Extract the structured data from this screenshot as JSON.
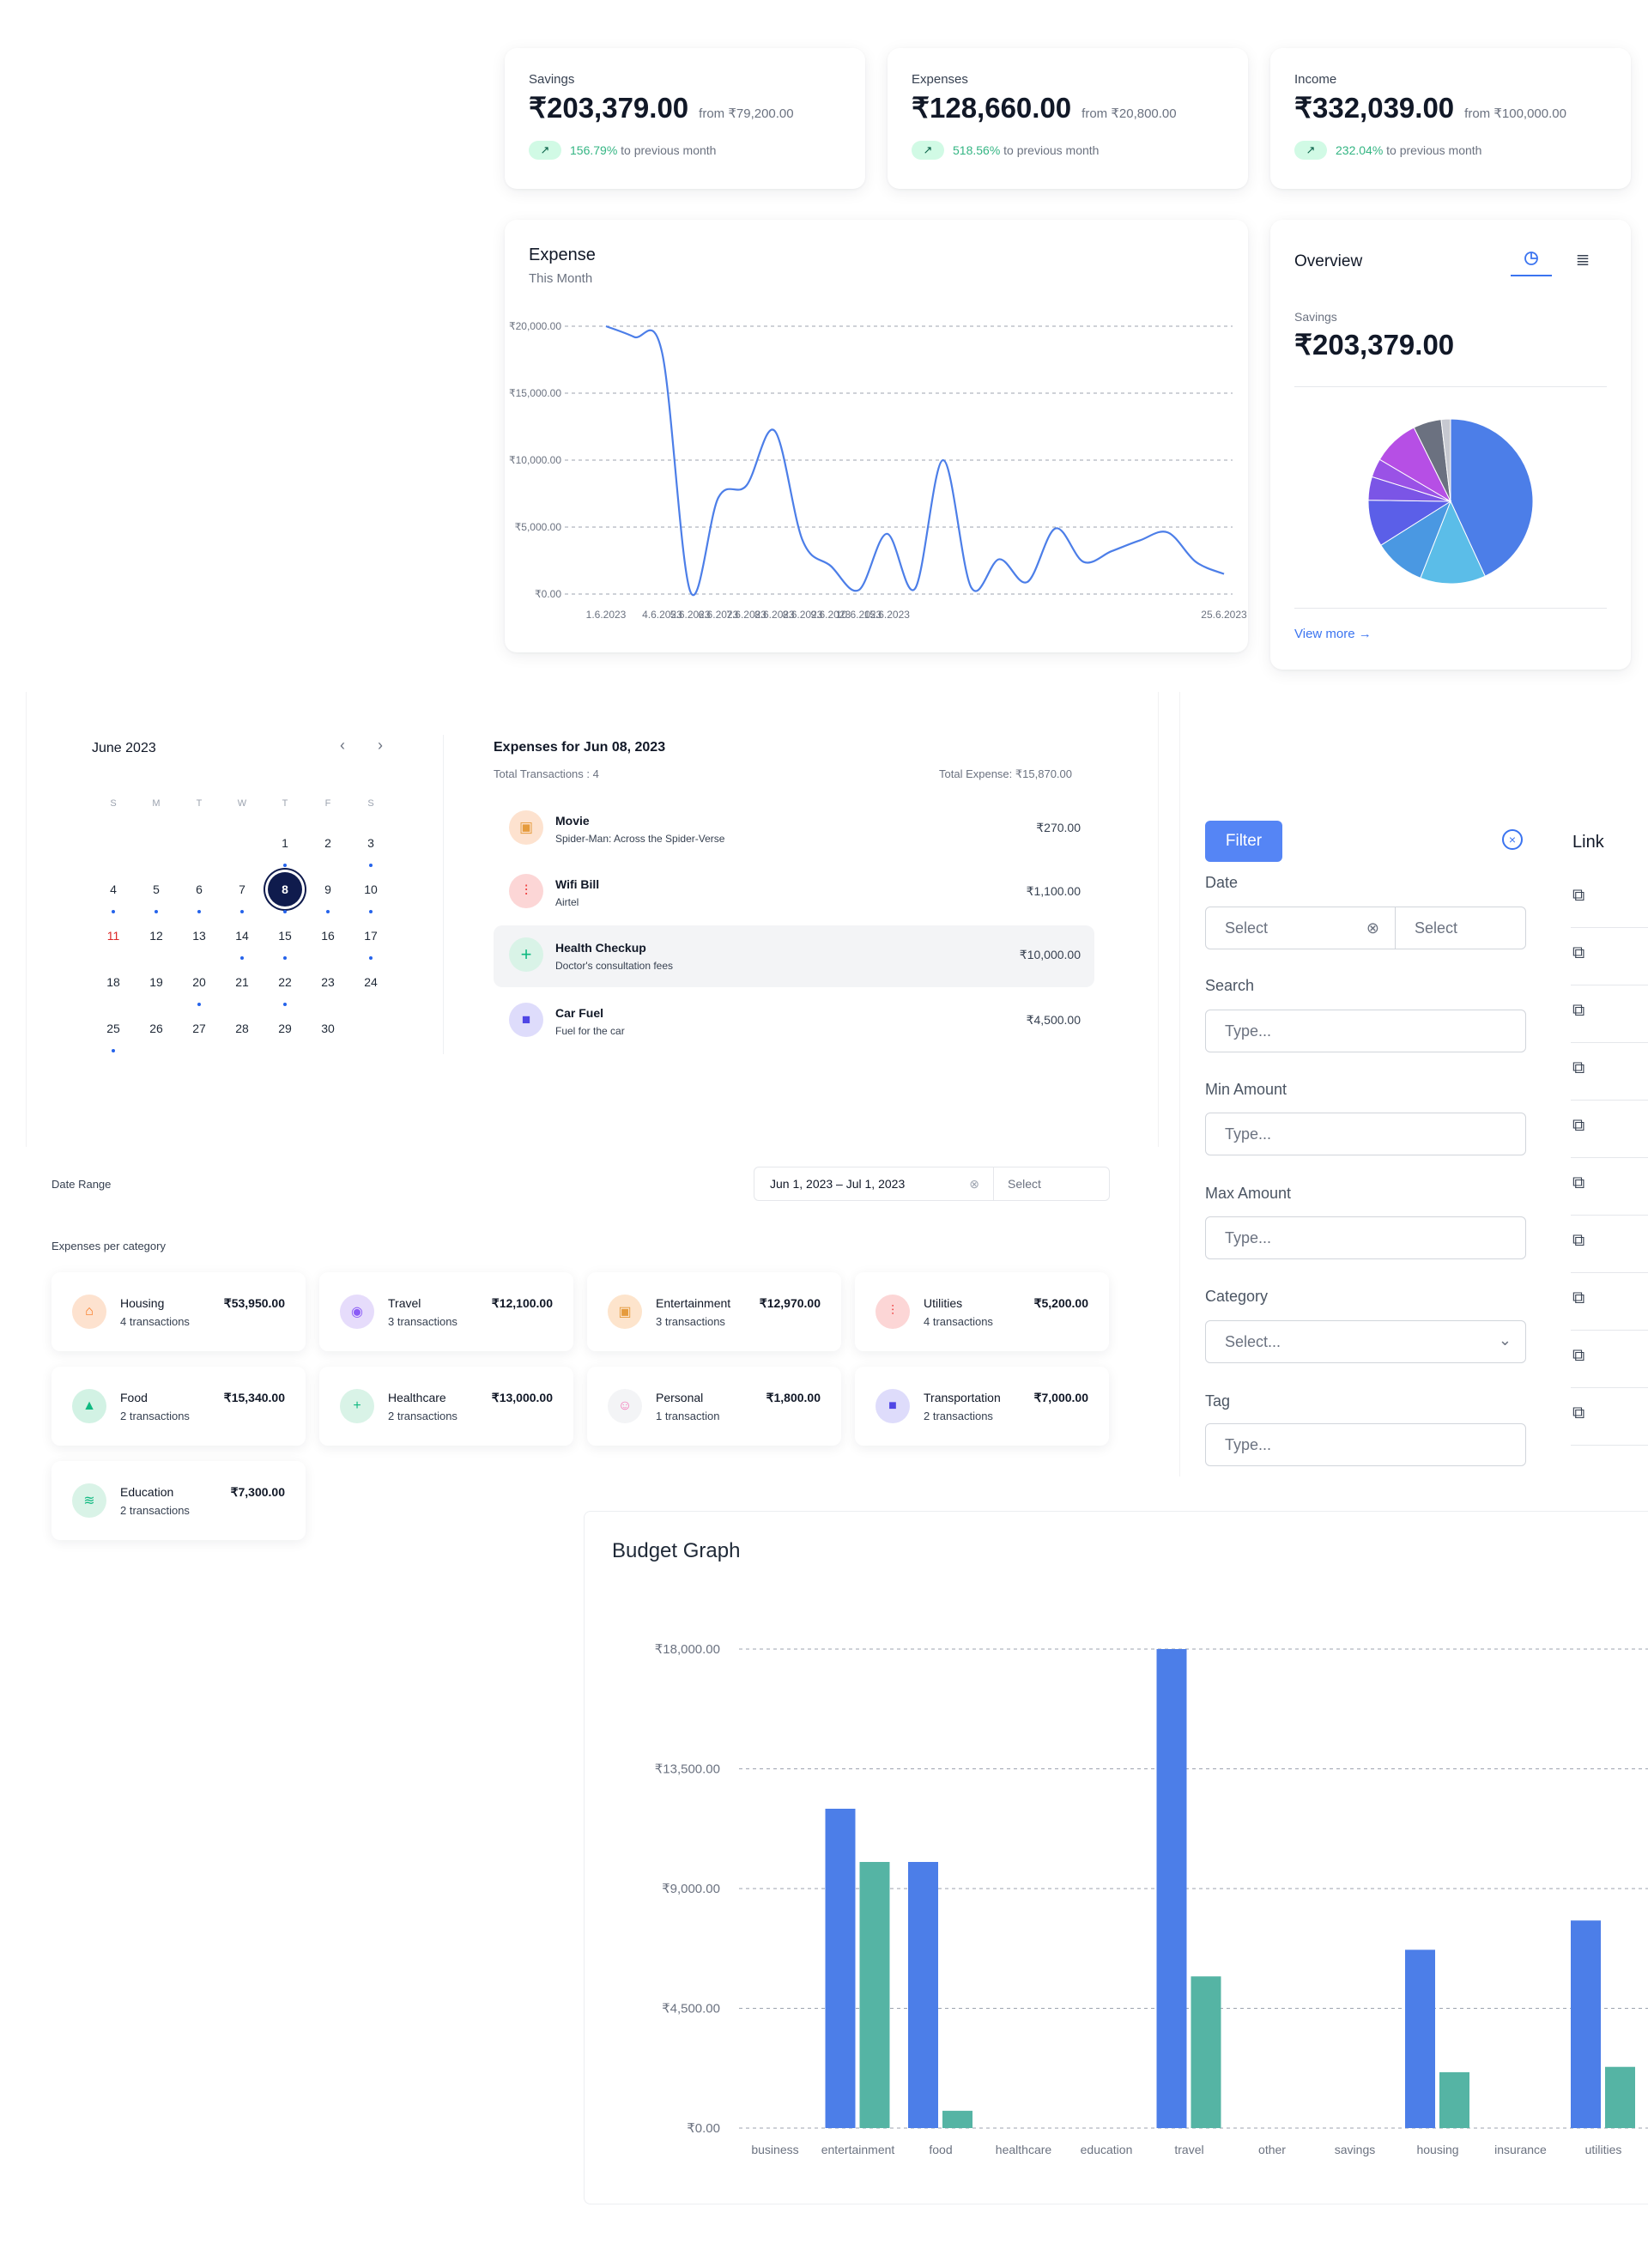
{
  "stats": [
    {
      "label": "Savings",
      "value": "₹203,379.00",
      "from": "from ₹79,200.00",
      "pct": "156.79%",
      "suffix": "to previous month"
    },
    {
      "label": "Expenses",
      "value": "₹128,660.00",
      "from": "from ₹20,800.00",
      "pct": "518.56%",
      "suffix": "to previous month"
    },
    {
      "label": "Income",
      "value": "₹332,039.00",
      "from": "from ₹100,000.00",
      "pct": "232.04%",
      "suffix": "to previous month"
    }
  ],
  "expense_card": {
    "title": "Expense",
    "subtitle": "This Month"
  },
  "overview": {
    "title": "Overview",
    "label": "Savings",
    "value": "₹203,379.00",
    "view_more": "View more",
    "tab_pie_icon": "pie-chart-icon",
    "tab_list_icon": "list-icon"
  },
  "calendar": {
    "month": "June 2023",
    "dows": [
      "S",
      "M",
      "T",
      "W",
      "T",
      "F",
      "S"
    ],
    "weeks": [
      [
        "",
        "",
        "",
        "",
        "1",
        "2",
        "3"
      ],
      [
        "4",
        "5",
        "6",
        "7",
        "8",
        "9",
        "10"
      ],
      [
        "11",
        "12",
        "13",
        "14",
        "15",
        "16",
        "17"
      ],
      [
        "18",
        "19",
        "20",
        "21",
        "22",
        "23",
        "24"
      ],
      [
        "25",
        "26",
        "27",
        "28",
        "29",
        "30",
        ""
      ]
    ],
    "selected": "8",
    "dot_days": [
      "1",
      "3",
      "4",
      "5",
      "6",
      "7",
      "8",
      "9",
      "10",
      "14",
      "15",
      "17",
      "20",
      "22",
      "25"
    ],
    "highlight_days": [
      "11"
    ]
  },
  "transactions": {
    "title": "Expenses for Jun 08, 2023",
    "total_count": "Total Transactions : 4",
    "total_expense": "Total Expense: ₹15,870.00",
    "items": [
      {
        "title": "Movie",
        "sub": "Spider-Man: Across the Spider-Verse",
        "amount": "₹270.00",
        "icon": "film-icon"
      },
      {
        "title": "Wifi Bill",
        "sub": "Airtel",
        "amount": "₹1,100.00",
        "icon": "utility-icon"
      },
      {
        "title": "Health Checkup",
        "sub": "Doctor's consultation fees",
        "amount": "₹10,000.00",
        "icon": "plus-icon"
      },
      {
        "title": "Car Fuel",
        "sub": "Fuel for the car",
        "amount": "₹4,500.00",
        "icon": "truck-icon"
      }
    ]
  },
  "date_range": {
    "label": "Date Range",
    "value": "Jun 1, 2023 – Jul 1, 2023",
    "select": "Select"
  },
  "categories_title": "Expenses per category",
  "categories": [
    {
      "name": "Housing",
      "count": "4 transactions",
      "amount": "₹53,950.00",
      "icon": "home-icon",
      "color": "#f97316",
      "bg": "#fde2cf"
    },
    {
      "name": "Travel",
      "count": "3 transactions",
      "amount": "₹12,100.00",
      "icon": "compass-icon",
      "color": "#8b5cf6",
      "bg": "#e6dcfb"
    },
    {
      "name": "Entertainment",
      "count": "3 transactions",
      "amount": "₹12,970.00",
      "icon": "film-icon",
      "color": "#e59b3d",
      "bg": "#fde4cc"
    },
    {
      "name": "Utilities",
      "count": "4 transactions",
      "amount": "₹5,200.00",
      "icon": "utility-icon",
      "color": "#ef4444",
      "bg": "#fcd6d6"
    },
    {
      "name": "Food",
      "count": "2 transactions",
      "amount": "₹15,340.00",
      "icon": "bag-icon",
      "color": "#10b981",
      "bg": "#d2f2e4"
    },
    {
      "name": "Healthcare",
      "count": "2 transactions",
      "amount": "₹13,000.00",
      "icon": "plus-icon",
      "color": "#10b981",
      "bg": "#d9f3e7"
    },
    {
      "name": "Personal",
      "count": "1 transaction",
      "amount": "₹1,800.00",
      "icon": "user-icon",
      "color": "#f472b6",
      "bg": "#f3f4f6"
    },
    {
      "name": "Transportation",
      "count": "2 transactions",
      "amount": "₹7,000.00",
      "icon": "truck-icon",
      "color": "#4f46e5",
      "bg": "#dedcfb"
    },
    {
      "name": "Education",
      "count": "2 transactions",
      "amount": "₹7,300.00",
      "icon": "graduation-icon",
      "color": "#10b981",
      "bg": "#d9f3e7"
    }
  ],
  "filter": {
    "button": "Filter",
    "date_label": "Date",
    "date_select_a": "Select",
    "date_select_b": "Select",
    "search_label": "Search",
    "search_placeholder": "Type...",
    "min_label": "Min Amount",
    "min_placeholder": "Type...",
    "max_label": "Max Amount",
    "max_placeholder": "Type...",
    "category_label": "Category",
    "category_placeholder": "Select...",
    "tag_label": "Tag",
    "tag_placeholder": "Type..."
  },
  "link_column": {
    "header": "Link",
    "count": 10
  },
  "budget": {
    "title": "Budget Graph"
  },
  "colors": {
    "blue": "#4c7ee8",
    "teal": "#55b4a4",
    "accent": "#3b74f0",
    "green": "#34b583"
  },
  "chart_data": [
    {
      "type": "line",
      "title": "Expense",
      "subtitle": "This Month",
      "x_ticks": [
        "1.6.2023",
        "4.6.2023",
        "5.6.2023",
        "6.6.2023",
        "7.6.2023",
        "8.6.2023",
        "8.6.2023",
        "9.6.2023",
        "10.6.2023",
        "15.6.2023",
        "25.6.2023"
      ],
      "y_ticks": [
        "₹0.00",
        "₹5,000.00",
        "₹10,000.00",
        "₹15,000.00",
        "₹20,000.00"
      ],
      "ylim": [
        0,
        20000
      ],
      "x": [
        0,
        0.5,
        1,
        1.5,
        2,
        2.5,
        3,
        3.5,
        4,
        4.5,
        5,
        5.5,
        6,
        6.5,
        7,
        7.5,
        8,
        8.5,
        9,
        9.5,
        10,
        10.5,
        11
      ],
      "values": [
        20000,
        19200,
        18000,
        200,
        7200,
        8100,
        12200,
        4000,
        2100,
        300,
        4500,
        400,
        10000,
        500,
        2600,
        900,
        4900,
        2400,
        3200,
        4000,
        4600,
        2400,
        1500
      ],
      "grid": true
    },
    {
      "type": "pie",
      "slices": [
        {
          "value": 47,
          "color": "#4c7ee8"
        },
        {
          "value": 14,
          "color": "#5bbde8"
        },
        {
          "value": 11,
          "color": "#4a98e2"
        },
        {
          "value": 10,
          "color": "#5b5fe8"
        },
        {
          "value": 5,
          "color": "#7b55e6"
        },
        {
          "value": 4,
          "color": "#9a52e6"
        },
        {
          "value": 10,
          "color": "#b64fe5"
        },
        {
          "value": 6,
          "color": "#6b7180"
        },
        {
          "value": 2,
          "color": "#c7c9d1"
        }
      ]
    },
    {
      "type": "bar",
      "title": "Budget Graph",
      "categories": [
        "business",
        "entertainment",
        "food",
        "healthcare",
        "education",
        "travel",
        "other",
        "savings",
        "housing",
        "insurance",
        "utilities"
      ],
      "y_ticks": [
        "₹0.00",
        "₹4,500.00",
        "₹9,000.00",
        "₹13,500.00",
        "₹18,000.00"
      ],
      "ylim": [
        0,
        18000
      ],
      "series": [
        {
          "values": [
            0,
            12000,
            10000,
            0,
            0,
            18000,
            0,
            0,
            6700,
            0,
            7800
          ],
          "color": "#4c7ee8"
        },
        {
          "values": [
            0,
            10000,
            650,
            0,
            0,
            5700,
            0,
            0,
            2100,
            0,
            2300
          ],
          "color": "#55b4a4"
        }
      ],
      "grid": true
    }
  ]
}
